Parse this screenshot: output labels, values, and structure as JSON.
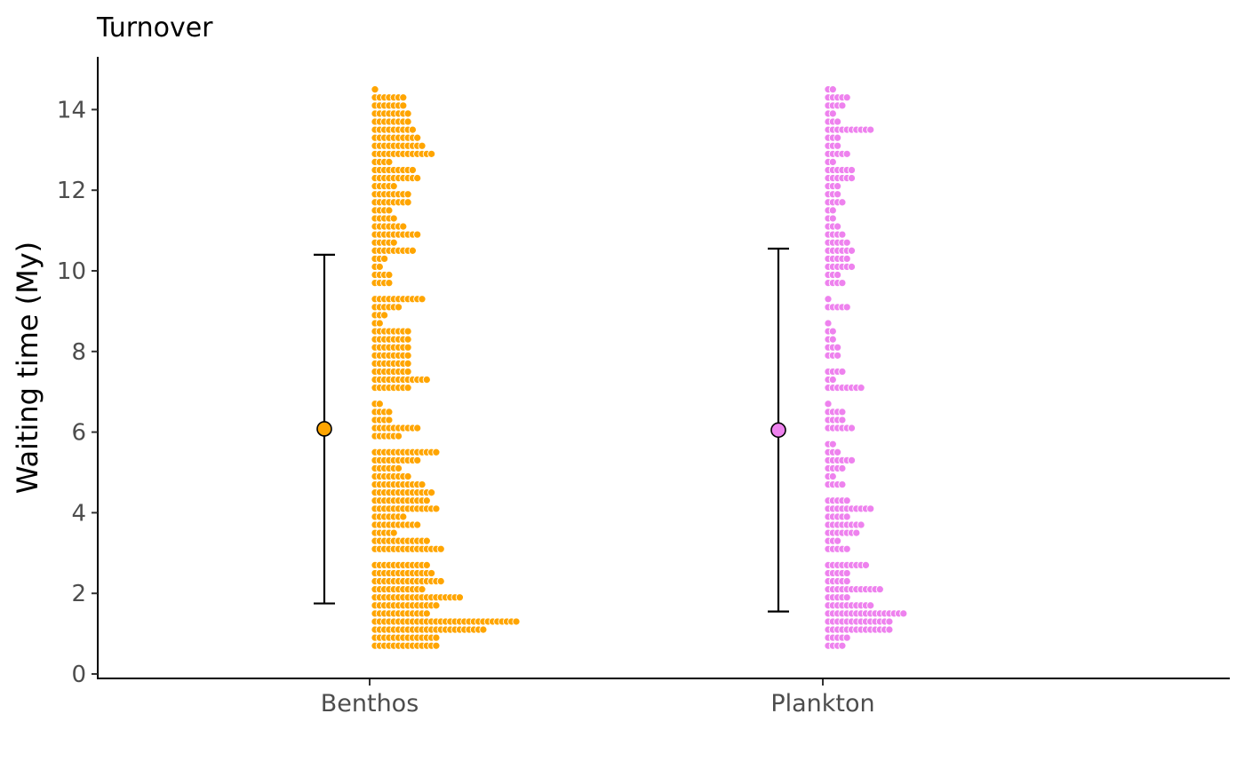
{
  "chart_data": {
    "type": "scatter",
    "subtype": "dotplot-with-mean-errorbars",
    "title": "Turnover",
    "xlabel": "",
    "ylabel": "Waiting time (My)",
    "ylim": [
      0,
      15.3
    ],
    "yticks": [
      0,
      2,
      4,
      6,
      8,
      10,
      12,
      14
    ],
    "categories": [
      "Benthos",
      "Plankton"
    ],
    "grid": false,
    "dot_bin_width": 0.2,
    "series": [
      {
        "name": "Benthos",
        "color": "#FFA500",
        "mean": 6.08,
        "lower": 1.75,
        "upper": 10.4,
        "bins": [
          [
            0.7,
            14
          ],
          [
            0.9,
            14
          ],
          [
            1.1,
            24
          ],
          [
            1.3,
            31
          ],
          [
            1.5,
            12
          ],
          [
            1.7,
            14
          ],
          [
            1.9,
            19
          ],
          [
            2.1,
            11
          ],
          [
            2.3,
            15
          ],
          [
            2.5,
            13
          ],
          [
            2.7,
            12
          ],
          [
            2.9,
            0
          ],
          [
            3.1,
            15
          ],
          [
            3.3,
            12
          ],
          [
            3.5,
            5
          ],
          [
            3.7,
            10
          ],
          [
            3.9,
            7
          ],
          [
            4.1,
            14
          ],
          [
            4.3,
            12
          ],
          [
            4.5,
            13
          ],
          [
            4.7,
            11
          ],
          [
            4.9,
            8
          ],
          [
            5.1,
            6
          ],
          [
            5.3,
            10
          ],
          [
            5.5,
            14
          ],
          [
            5.7,
            0
          ],
          [
            5.9,
            6
          ],
          [
            6.1,
            10
          ],
          [
            6.3,
            4
          ],
          [
            6.5,
            4
          ],
          [
            6.7,
            2
          ],
          [
            6.9,
            0
          ],
          [
            7.1,
            8
          ],
          [
            7.3,
            12
          ],
          [
            7.5,
            8
          ],
          [
            7.7,
            8
          ],
          [
            7.9,
            8
          ],
          [
            8.1,
            8
          ],
          [
            8.3,
            8
          ],
          [
            8.5,
            8
          ],
          [
            8.7,
            2
          ],
          [
            8.9,
            3
          ],
          [
            9.1,
            6
          ],
          [
            9.3,
            11
          ],
          [
            9.5,
            0
          ],
          [
            9.7,
            4
          ],
          [
            9.9,
            4
          ],
          [
            10.1,
            2
          ],
          [
            10.3,
            3
          ],
          [
            10.5,
            9
          ],
          [
            10.7,
            5
          ],
          [
            10.9,
            10
          ],
          [
            11.1,
            7
          ],
          [
            11.3,
            5
          ],
          [
            11.5,
            4
          ],
          [
            11.7,
            8
          ],
          [
            11.9,
            8
          ],
          [
            12.1,
            5
          ],
          [
            12.3,
            10
          ],
          [
            12.5,
            9
          ],
          [
            12.7,
            4
          ],
          [
            12.9,
            13
          ],
          [
            13.1,
            11
          ],
          [
            13.3,
            10
          ],
          [
            13.5,
            9
          ],
          [
            13.7,
            8
          ],
          [
            13.9,
            8
          ],
          [
            14.1,
            7
          ],
          [
            14.3,
            7
          ],
          [
            14.5,
            1
          ]
        ]
      },
      {
        "name": "Plankton",
        "color": "#EE82EE",
        "mean": 6.05,
        "lower": 1.55,
        "upper": 10.55,
        "bins": [
          [
            0.7,
            4
          ],
          [
            0.9,
            5
          ],
          [
            1.1,
            14
          ],
          [
            1.3,
            14
          ],
          [
            1.5,
            17
          ],
          [
            1.7,
            10
          ],
          [
            1.9,
            5
          ],
          [
            2.1,
            12
          ],
          [
            2.3,
            5
          ],
          [
            2.5,
            5
          ],
          [
            2.7,
            9
          ],
          [
            2.9,
            0
          ],
          [
            3.1,
            5
          ],
          [
            3.3,
            3
          ],
          [
            3.5,
            7
          ],
          [
            3.7,
            8
          ],
          [
            3.9,
            5
          ],
          [
            4.1,
            10
          ],
          [
            4.3,
            5
          ],
          [
            4.5,
            0
          ],
          [
            4.7,
            4
          ],
          [
            4.9,
            2
          ],
          [
            5.1,
            4
          ],
          [
            5.3,
            6
          ],
          [
            5.5,
            3
          ],
          [
            5.7,
            2
          ],
          [
            5.9,
            0
          ],
          [
            6.1,
            6
          ],
          [
            6.3,
            4
          ],
          [
            6.5,
            4
          ],
          [
            6.7,
            1
          ],
          [
            6.9,
            0
          ],
          [
            7.1,
            8
          ],
          [
            7.3,
            2
          ],
          [
            7.5,
            4
          ],
          [
            7.7,
            0
          ],
          [
            7.9,
            3
          ],
          [
            8.1,
            3
          ],
          [
            8.3,
            2
          ],
          [
            8.5,
            2
          ],
          [
            8.7,
            1
          ],
          [
            8.9,
            0
          ],
          [
            9.1,
            5
          ],
          [
            9.3,
            1
          ],
          [
            9.5,
            0
          ],
          [
            9.7,
            4
          ],
          [
            9.9,
            3
          ],
          [
            10.1,
            6
          ],
          [
            10.3,
            5
          ],
          [
            10.5,
            6
          ],
          [
            10.7,
            5
          ],
          [
            10.9,
            4
          ],
          [
            11.1,
            3
          ],
          [
            11.3,
            2
          ],
          [
            11.5,
            2
          ],
          [
            11.7,
            4
          ],
          [
            11.9,
            3
          ],
          [
            12.1,
            3
          ],
          [
            12.3,
            6
          ],
          [
            12.5,
            6
          ],
          [
            12.7,
            2
          ],
          [
            12.9,
            5
          ],
          [
            13.1,
            3
          ],
          [
            13.3,
            3
          ],
          [
            13.5,
            10
          ],
          [
            13.7,
            3
          ],
          [
            13.9,
            2
          ],
          [
            14.1,
            4
          ],
          [
            14.3,
            5
          ],
          [
            14.5,
            2
          ]
        ]
      }
    ]
  }
}
